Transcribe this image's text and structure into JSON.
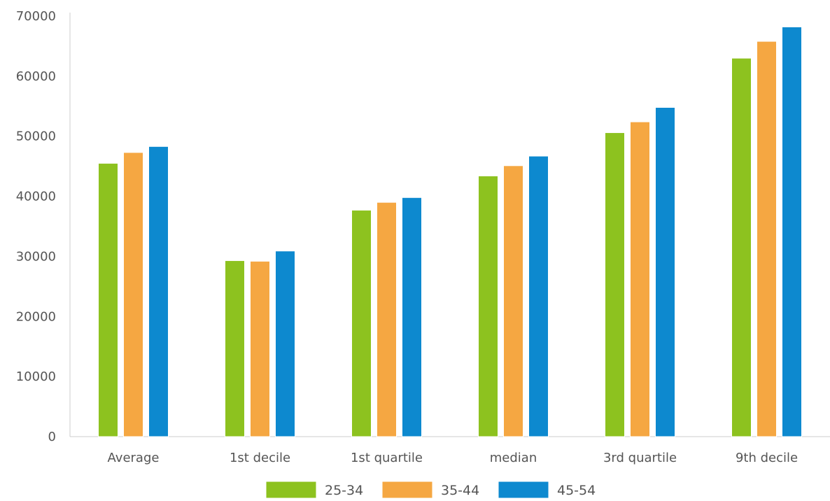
{
  "chart_data": {
    "type": "bar",
    "categories": [
      "Average",
      "1st decile",
      "1st quartile",
      "median",
      "3rd quartile",
      "9th decile"
    ],
    "series": [
      {
        "name": "25-34",
        "color": "#8dc21f",
        "values": [
          45500,
          29300,
          37700,
          43400,
          50600,
          63000
        ]
      },
      {
        "name": "35-44",
        "color": "#f5a742",
        "values": [
          47300,
          29200,
          39000,
          45100,
          52400,
          65800
        ]
      },
      {
        "name": "45-54",
        "color": "#0d89cf",
        "values": [
          48300,
          30900,
          39800,
          46700,
          54800,
          68200
        ]
      }
    ],
    "ylim": [
      0,
      70000
    ],
    "yticks": [
      "0",
      "10000",
      "20000",
      "30000",
      "40000",
      "50000",
      "60000",
      "70000"
    ],
    "grid": false,
    "legend_position": "bottom-center",
    "title": "",
    "xlabel": "",
    "ylabel": ""
  }
}
